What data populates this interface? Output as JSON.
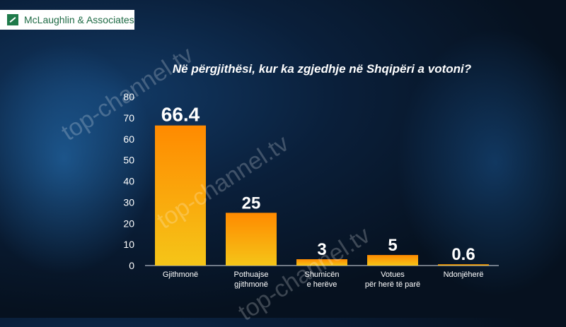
{
  "logo": {
    "text": "McLaughlin & Associates"
  },
  "watermark": "top-channel.tv",
  "chart_data": {
    "type": "bar",
    "title": "Në përgjithësi, kur ka zgjedhje në Shqipëri a votoni?",
    "categories": [
      [
        "Gjithmonë"
      ],
      [
        "Pothuajse",
        "gjithmonë"
      ],
      [
        "Shumicën",
        "e herëve"
      ],
      [
        "Votues",
        "për herë të parë"
      ],
      [
        "Ndonjëherë"
      ]
    ],
    "values": [
      66.4,
      25,
      3,
      5,
      0.6
    ],
    "value_labels": [
      "66.4",
      "25",
      "3",
      "5",
      "0.6"
    ],
    "ylim": [
      0,
      80
    ],
    "yticks": [
      0,
      10,
      20,
      30,
      40,
      50,
      60,
      70,
      80
    ],
    "grid": false,
    "colors": {
      "bar_top": "#ff8a00",
      "bar_bottom": "#f5c518",
      "axis_text": "#ffffff"
    }
  }
}
